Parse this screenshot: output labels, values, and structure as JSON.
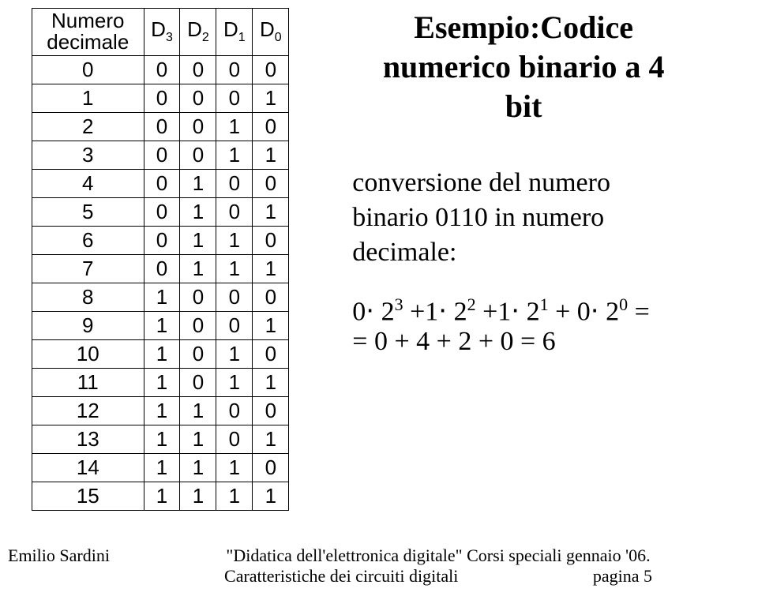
{
  "table": {
    "header": {
      "col0_line1": "Numero",
      "col0_line2": "decimale",
      "d3": "D",
      "d3_sub": "3",
      "d2": "D",
      "d2_sub": "2",
      "d1": "D",
      "d1_sub": "1",
      "d0": "D",
      "d0_sub": "0"
    },
    "rows": [
      [
        "0",
        "0",
        "0",
        "0",
        "0"
      ],
      [
        "1",
        "0",
        "0",
        "0",
        "1"
      ],
      [
        "2",
        "0",
        "0",
        "1",
        "0"
      ],
      [
        "3",
        "0",
        "0",
        "1",
        "1"
      ],
      [
        "4",
        "0",
        "1",
        "0",
        "0"
      ],
      [
        "5",
        "0",
        "1",
        "0",
        "1"
      ],
      [
        "6",
        "0",
        "1",
        "1",
        "0"
      ],
      [
        "7",
        "0",
        "1",
        "1",
        "1"
      ],
      [
        "8",
        "1",
        "0",
        "0",
        "0"
      ],
      [
        "9",
        "1",
        "0",
        "0",
        "1"
      ],
      [
        "10",
        "1",
        "0",
        "1",
        "0"
      ],
      [
        "11",
        "1",
        "0",
        "1",
        "1"
      ],
      [
        "12",
        "1",
        "1",
        "0",
        "0"
      ],
      [
        "13",
        "1",
        "1",
        "0",
        "1"
      ],
      [
        "14",
        "1",
        "1",
        "1",
        "0"
      ],
      [
        "15",
        "1",
        "1",
        "1",
        "1"
      ]
    ]
  },
  "title_line1": "Esempio:Codice",
  "title_line2": "numerico binario a 4",
  "title_line3": "bit",
  "desc_line1": "conversione del numero",
  "desc_line2": "binario  0110  in numero",
  "desc_line3": "decimale:",
  "formula_line1_a": "0",
  "formula_line1_dot": "⋅",
  "formula_line1_b": "2",
  "formula_line1_e3": "3",
  "formula_line1_plus": "+",
  "formula_line1_c": "1",
  "formula_line1_e2": "2",
  "formula_line1_e1": "1",
  "formula_line1_e0": "0",
  "formula_line1_eq": "=",
  "formula_line2": "= 0 + 4 + 2 + 0 = 6",
  "footer_left": "Emilio Sardini",
  "footer_mid1": "\"Didatica dell'elettronica digitale\" Corsi speciali gennaio '06.",
  "footer_mid2_a": "Caratteristiche dei circuiti digitali",
  "footer_mid2_b": "pagina 5"
}
